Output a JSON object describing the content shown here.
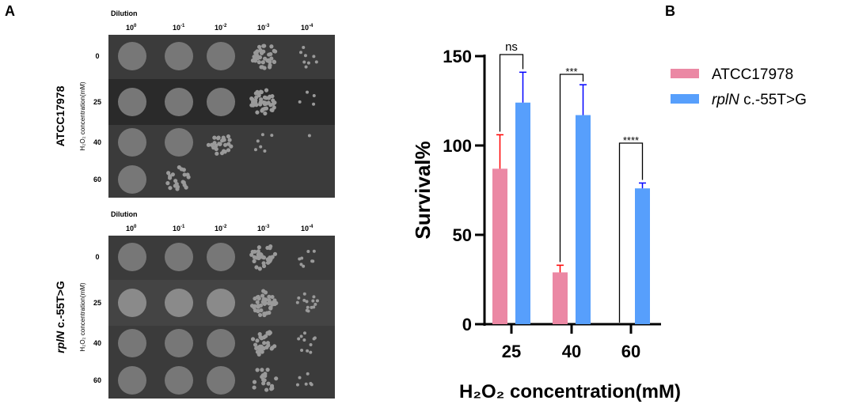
{
  "panel_a": {
    "label": "A",
    "dilution_label": "Dilution",
    "dilutions": [
      {
        "base": "10",
        "exp": "0"
      },
      {
        "base": "10",
        "exp": "-1"
      },
      {
        "base": "10",
        "exp": "-2"
      },
      {
        "base": "10",
        "exp": "-3"
      },
      {
        "base": "10",
        "exp": "-4"
      }
    ],
    "concentrations": [
      "0",
      "25",
      "40",
      "60"
    ],
    "axis_label": "H₂O₂ concentration(mM)",
    "strains": [
      {
        "name": "ATCC17978",
        "italic_part": "",
        "rest": "ATCC17978"
      },
      {
        "name": "rplN c.-55T>G",
        "italic_part": "rplN",
        "rest": " c.-55T>G"
      }
    ]
  },
  "panel_b": {
    "label": "B"
  },
  "chart_data": {
    "type": "bar",
    "title": "",
    "xlabel": "H₂O₂ concentration(mM)",
    "ylabel": "Survival%",
    "categories": [
      "25",
      "40",
      "60"
    ],
    "ylim": [
      0,
      150
    ],
    "yticks": [
      "0",
      "50",
      "100",
      "150"
    ],
    "series": [
      {
        "name": "ATCC17978",
        "values": [
          87,
          29,
          0
        ],
        "error": [
          19,
          4,
          0
        ],
        "color": "#eb88a4",
        "error_color": "#ff0000"
      },
      {
        "name": "rplN c.-55T>G",
        "name_italic": "rplN",
        "name_rest": " c.-55T>G",
        "values": [
          124,
          117,
          76
        ],
        "error": [
          17,
          17,
          3
        ],
        "color": "#579ffc",
        "error_color": "#0000ff"
      }
    ],
    "significance": [
      "ns",
      "***",
      "****"
    ],
    "legend_position": "top-right",
    "grid": false
  }
}
